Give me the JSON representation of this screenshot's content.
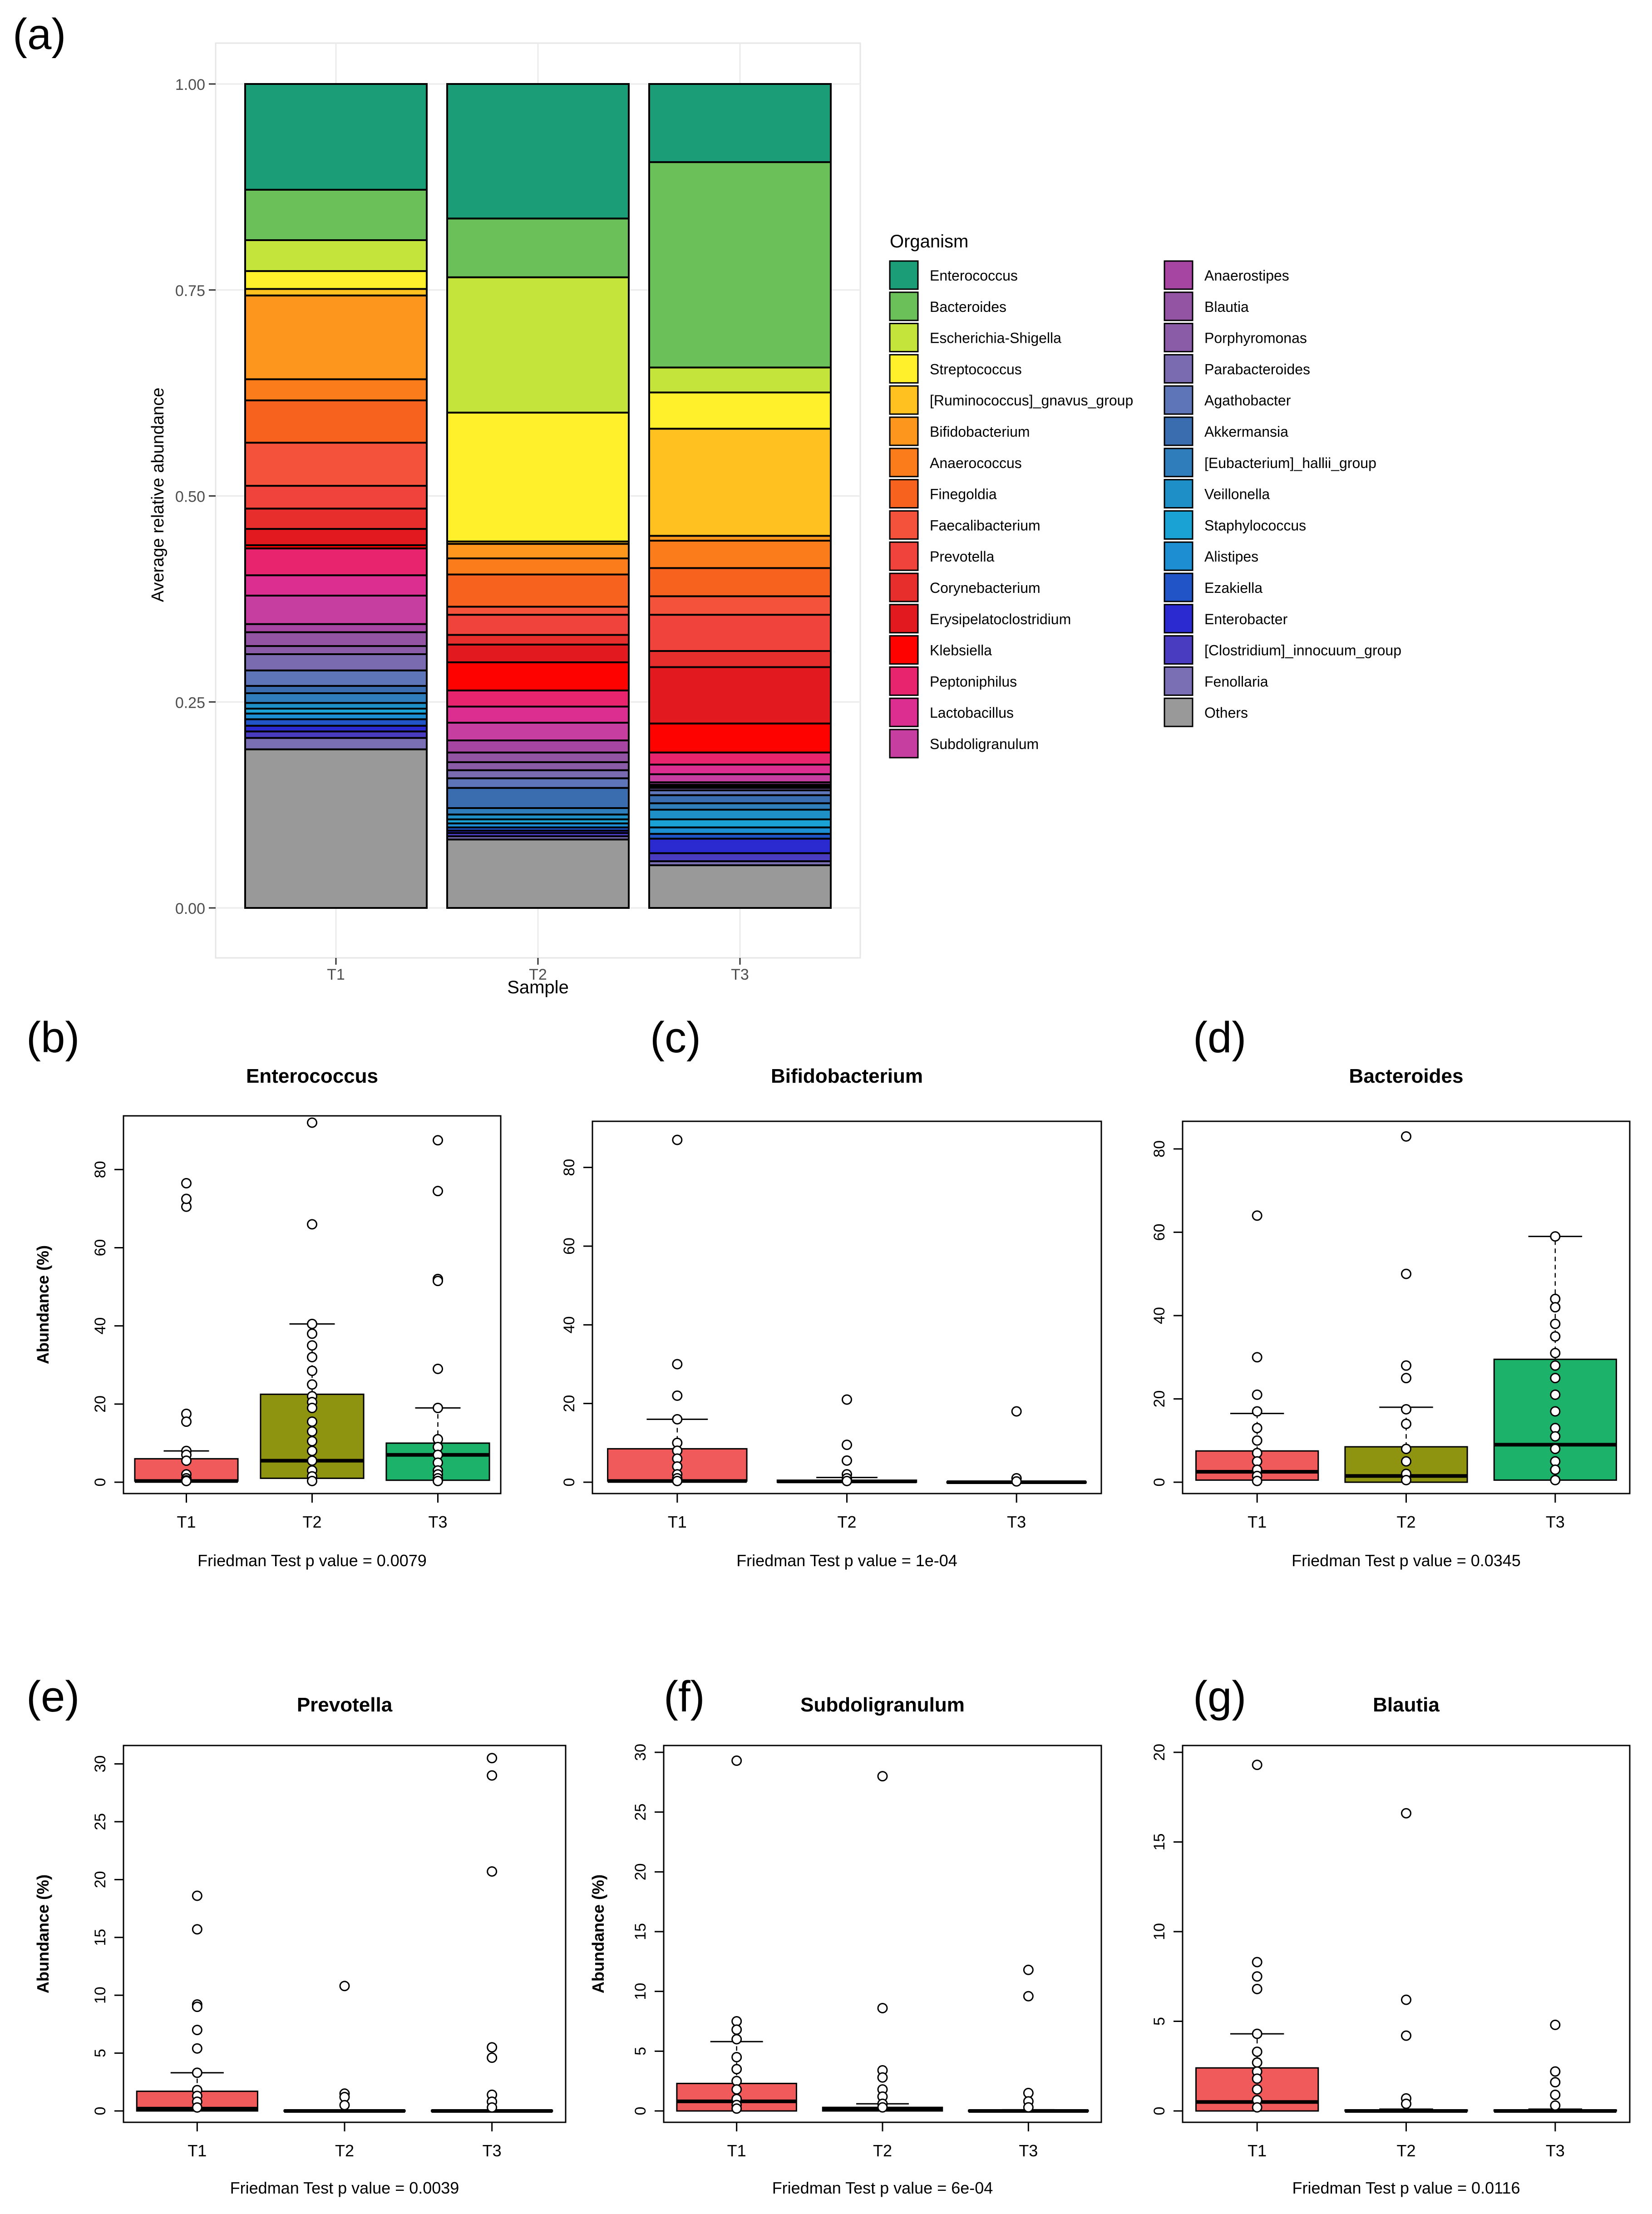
{
  "figure_labels": {
    "a": "(a)",
    "b": "(b)",
    "c": "(c)",
    "d": "(d)",
    "e": "(e)",
    "f": "(f)",
    "g": "(g)"
  },
  "colors": {
    "Enterococcus": "#1b9e77",
    "Bacteroides": "#6cc05a",
    "Escherichia-Shigella": "#c4e43c",
    "Streptococcus": "#fff02b",
    "[Ruminococcus]_gnavus_group": "#fec120",
    "Bifidobacterium": "#fd961c",
    "Anaerococcus": "#fb7c1b",
    "Finegoldia": "#f7631f",
    "Faecalibacterium": "#f5523b",
    "Prevotella": "#f0433b",
    "Corynebacterium": "#e82d2d",
    "Erysipelatoclostridium": "#e2191f",
    "Klebsiella": "#fe0200",
    "Peptoniphilus": "#e8246e",
    "Lactobacillus": "#dc2e91",
    "Subdoligranulum": "#c53ea0",
    "Anaerostipes": "#a745a2",
    "Blautia": "#9354a3",
    "Porphyromonas": "#8a5ba6",
    "Parabacteroides": "#7a6ab0",
    "Agathobacter": "#5e76b8",
    "Akkermansia": "#3a6daf",
    "[Eubacterium]_hallii_group": "#2f7dbb",
    "Veillonella": "#1f8fc8",
    "Staphylococcus": "#1aa2d4",
    "Alistipes": "#1c8ed1",
    "Ezakiella": "#2155c7",
    "Enterobacter": "#2a2ad0",
    "[Clostridium]_innocuum_group": "#4a3cc0",
    "Fenollaria": "#7a6eb4",
    "Others": "#999999",
    "box_T1": "#f15a5a",
    "box_T2": "#8f9410",
    "box_T3": "#1db26a"
  },
  "chart_data": [
    {
      "id": "a",
      "type": "bar",
      "stacked": true,
      "title": "",
      "xlabel": "Sample",
      "ylabel": "Average relative abundance",
      "ylim": [
        0,
        1
      ],
      "yticks": [
        "0.00",
        "0.25",
        "0.50",
        "0.75",
        "1.00"
      ],
      "categories": [
        "T1",
        "T2",
        "T3"
      ],
      "legend_title": "Organism",
      "legend_col1": [
        "Enterococcus",
        "Bacteroides",
        "Escherichia-Shigella",
        "Streptococcus",
        "[Ruminococcus]_gnavus_group",
        "Bifidobacterium",
        "Anaerococcus",
        "Finegoldia",
        "Faecalibacterium",
        "Prevotella",
        "Corynebacterium",
        "Erysipelatoclostridium",
        "Klebsiella",
        "Peptoniphilus",
        "Lactobacillus",
        "Subdoligranulum"
      ],
      "legend_col2": [
        "Anaerostipes",
        "Blautia",
        "Porphyromonas",
        "Parabacteroides",
        "Agathobacter",
        "Akkermansia",
        "[Eubacterium]_hallii_group",
        "Veillonella",
        "Staphylococcus",
        "Alistipes",
        "Ezakiella",
        "Enterobacter",
        "[Clostridium]_innocuum_group",
        "Fenollaria",
        "Others"
      ],
      "series": [
        {
          "name": "Enterococcus",
          "values": [
            0.13,
            0.167,
            0.097
          ]
        },
        {
          "name": "Bacteroides",
          "values": [
            0.062,
            0.073,
            0.255
          ]
        },
        {
          "name": "Escherichia-Shigella",
          "values": [
            0.038,
            0.168,
            0.031
          ]
        },
        {
          "name": "Streptococcus",
          "values": [
            0.022,
            0.16,
            0.045
          ]
        },
        {
          "name": "[Ruminococcus]_gnavus_group",
          "values": [
            0.008,
            0.003,
            0.133
          ]
        },
        {
          "name": "Bifidobacterium",
          "values": [
            0.103,
            0.018,
            0.006
          ]
        },
        {
          "name": "Anaerococcus",
          "values": [
            0.026,
            0.02,
            0.034
          ]
        },
        {
          "name": "Finegoldia",
          "values": [
            0.052,
            0.04,
            0.035
          ]
        },
        {
          "name": "Faecalibacterium",
          "values": [
            0.053,
            0.01,
            0.023
          ]
        },
        {
          "name": "Prevotella",
          "values": [
            0.028,
            0.025,
            0.045
          ]
        },
        {
          "name": "Corynebacterium",
          "values": [
            0.025,
            0.012,
            0.02
          ]
        },
        {
          "name": "Erysipelatoclostridium",
          "values": [
            0.02,
            0.022,
            0.07
          ]
        },
        {
          "name": "Klebsiella",
          "values": [
            0.004,
            0.035,
            0.036
          ]
        },
        {
          "name": "Peptoniphilus",
          "values": [
            0.033,
            0.02,
            0.015
          ]
        },
        {
          "name": "Lactobacillus",
          "values": [
            0.025,
            0.02,
            0.012
          ]
        },
        {
          "name": "Subdoligranulum",
          "values": [
            0.035,
            0.022,
            0.01
          ]
        },
        {
          "name": "Anaerostipes",
          "values": [
            0.01,
            0.015,
            0.003
          ]
        },
        {
          "name": "Blautia",
          "values": [
            0.017,
            0.012,
            0.002
          ]
        },
        {
          "name": "Porphyromonas",
          "values": [
            0.01,
            0.01,
            0.002
          ]
        },
        {
          "name": "Parabacteroides",
          "values": [
            0.02,
            0.01,
            0.003
          ]
        },
        {
          "name": "Agathobacter",
          "values": [
            0.019,
            0.012,
            0.006
          ]
        },
        {
          "name": "Akkermansia",
          "values": [
            0.009,
            0.025,
            0.01
          ]
        },
        {
          "name": "[Eubacterium]_hallii_group",
          "values": [
            0.012,
            0.008,
            0.008
          ]
        },
        {
          "name": "Veillonella",
          "values": [
            0.007,
            0.006,
            0.012
          ]
        },
        {
          "name": "Staphylococcus",
          "values": [
            0.006,
            0.005,
            0.01
          ]
        },
        {
          "name": "Alistipes",
          "values": [
            0.007,
            0.005,
            0.008
          ]
        },
        {
          "name": "Ezakiella",
          "values": [
            0.008,
            0.004,
            0.006
          ]
        },
        {
          "name": "Enterobacter",
          "values": [
            0.007,
            0.003,
            0.018
          ]
        },
        {
          "name": "[Clostridium]_innocuum_group",
          "values": [
            0.008,
            0.004,
            0.01
          ]
        },
        {
          "name": "Fenollaria",
          "values": [
            0.014,
            0.004,
            0.005
          ]
        },
        {
          "name": "Others",
          "values": [
            0.195,
            0.085,
            0.053
          ]
        }
      ]
    },
    {
      "id": "b",
      "type": "box",
      "title": "Enterococcus",
      "ylabel": "Abundance (%)",
      "footer": "Friedman Test p value = 0.0079",
      "categories": [
        "T1",
        "T2",
        "T3"
      ],
      "ymax": 92,
      "yticks": [
        0,
        20,
        40,
        60,
        80
      ],
      "boxes": [
        {
          "q1": 0.3,
          "med": 0.3,
          "q3": 6,
          "whisker_hi": 8,
          "points": [
            76.5,
            70.5,
            72.5,
            17.5,
            15.5,
            8,
            7,
            5.5,
            2,
            1,
            0.5,
            0.3
          ]
        },
        {
          "q1": 1,
          "med": 5.5,
          "q3": 22.5,
          "whisker_hi": 40.5,
          "points": [
            92,
            66,
            40.5,
            38,
            35,
            32,
            28.5,
            25,
            22,
            20.5,
            19,
            15.5,
            13,
            10.5,
            8,
            5.5,
            3,
            1.5,
            0.3
          ]
        },
        {
          "q1": 0.5,
          "med": 7,
          "q3": 10,
          "whisker_hi": 19,
          "points": [
            87.5,
            74.5,
            52,
            51.5,
            29,
            19,
            11,
            9,
            7,
            5,
            3,
            2,
            1,
            0.3
          ]
        }
      ]
    },
    {
      "id": "c",
      "type": "box",
      "title": "Bifidobacterium",
      "ylabel": "",
      "footer": "Friedman Test p value = 1e-04",
      "categories": [
        "T1",
        "T2",
        "T3"
      ],
      "ymax": 90,
      "yticks": [
        0,
        20,
        40,
        60,
        80
      ],
      "boxes": [
        {
          "q1": 0.3,
          "med": 0.3,
          "q3": 8.5,
          "whisker_hi": 16,
          "points": [
            87,
            30,
            22,
            16,
            10,
            8,
            6,
            4,
            2,
            1,
            0.3
          ]
        },
        {
          "q1": 0,
          "med": 0.2,
          "q3": 0.5,
          "whisker_hi": 1.2,
          "points": [
            21,
            9.5,
            5.5,
            2,
            1,
            0.3
          ]
        },
        {
          "q1": 0,
          "med": 0,
          "q3": 0.1,
          "whisker_hi": 0.2,
          "points": [
            18,
            1,
            0.2
          ]
        }
      ]
    },
    {
      "id": "d",
      "type": "box",
      "title": "Bacteroides",
      "ylabel": "",
      "footer": "Friedman Test p value = 0.0345",
      "categories": [
        "T1",
        "T2",
        "T3"
      ],
      "ymax": 85,
      "yticks": [
        0,
        20,
        40,
        60,
        80
      ],
      "boxes": [
        {
          "q1": 0.5,
          "med": 2.5,
          "q3": 7.5,
          "whisker_hi": 16.5,
          "points": [
            64,
            30,
            21,
            17,
            13,
            10,
            7,
            5,
            3,
            1.5,
            0.3
          ]
        },
        {
          "q1": 0,
          "med": 1.5,
          "q3": 8.5,
          "whisker_hi": 18,
          "points": [
            83,
            50,
            28,
            25,
            17.5,
            14,
            8,
            5,
            2,
            0.5
          ]
        },
        {
          "q1": 0.5,
          "med": 9,
          "q3": 29.5,
          "whisker_hi": 59,
          "points": [
            59,
            44,
            42,
            38,
            35,
            31,
            28,
            25,
            21,
            17,
            13,
            11,
            8,
            5,
            3,
            0.5
          ]
        }
      ]
    },
    {
      "id": "e",
      "type": "box",
      "title": "Prevotella",
      "ylabel": "Abundance (%)",
      "footer": "Friedman Test p value = 0.0039",
      "categories": [
        "T1",
        "T2",
        "T3"
      ],
      "ymax": 31,
      "yticks": [
        0,
        5,
        10,
        15,
        20,
        25,
        30
      ],
      "boxes": [
        {
          "q1": 0,
          "med": 0.2,
          "q3": 1.7,
          "whisker_hi": 3.3,
          "points": [
            18.6,
            15.7,
            9.2,
            9,
            7,
            5.4,
            3.3,
            1.8,
            1.3,
            0.8,
            0.3
          ]
        },
        {
          "q1": 0,
          "med": 0,
          "q3": 0.05,
          "whisker_hi": 0.1,
          "points": [
            10.8,
            1.5,
            1.2,
            0.5
          ]
        },
        {
          "q1": 0,
          "med": 0,
          "q3": 0.05,
          "whisker_hi": 0.1,
          "points": [
            30.5,
            29,
            20.7,
            5.5,
            4.6,
            1.4,
            0.8,
            0.3
          ]
        }
      ]
    },
    {
      "id": "f",
      "type": "box",
      "title": "Subdoligranulum",
      "ylabel": "Abundance (%)",
      "footer": "Friedman Test p value = 6e-04",
      "categories": [
        "T1",
        "T2",
        "T3"
      ],
      "ymax": 30,
      "yticks": [
        0,
        5,
        10,
        15,
        20,
        25,
        30
      ],
      "boxes": [
        {
          "q1": 0,
          "med": 0.8,
          "q3": 2.3,
          "whisker_hi": 5.8,
          "points": [
            29.3,
            7.5,
            6.8,
            6,
            4.5,
            3.5,
            2.5,
            1.8,
            1,
            0.5,
            0.2
          ]
        },
        {
          "q1": 0,
          "med": 0.1,
          "q3": 0.3,
          "whisker_hi": 0.6,
          "points": [
            28,
            8.6,
            3.4,
            2.8,
            1.8,
            1.2,
            0.6,
            0.3
          ]
        },
        {
          "q1": 0,
          "med": 0,
          "q3": 0.05,
          "whisker_hi": 0.1,
          "points": [
            11.8,
            9.6,
            1.5,
            0.8,
            0.3
          ]
        }
      ]
    },
    {
      "id": "g",
      "type": "box",
      "title": "Blautia",
      "ylabel": "",
      "footer": "Friedman Test p value = 0.0116",
      "categories": [
        "T1",
        "T2",
        "T3"
      ],
      "ymax": 20,
      "yticks": [
        0,
        5,
        10,
        15,
        20
      ],
      "boxes": [
        {
          "q1": 0,
          "med": 0.5,
          "q3": 2.4,
          "whisker_hi": 4.3,
          "points": [
            19.3,
            8.3,
            7.5,
            6.8,
            4.3,
            3.3,
            2.7,
            2.2,
            1.8,
            1.2,
            0.6,
            0.2
          ]
        },
        {
          "q1": 0,
          "med": 0,
          "q3": 0.05,
          "whisker_hi": 0.1,
          "points": [
            16.6,
            6.2,
            4.2,
            0.7,
            0.4
          ]
        },
        {
          "q1": 0,
          "med": 0,
          "q3": 0.05,
          "whisker_hi": 0.1,
          "points": [
            4.8,
            2.2,
            1.6,
            0.9,
            0.3
          ]
        }
      ]
    }
  ]
}
